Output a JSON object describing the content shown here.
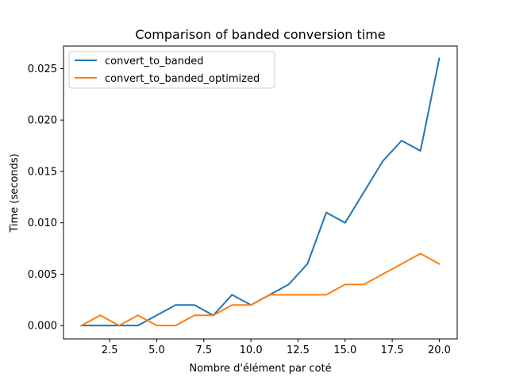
{
  "chart_data": {
    "type": "line",
    "title": "Comparison of banded conversion time",
    "xlabel": "Nombre d'élément par coté",
    "ylabel": "Time (seconds)",
    "xlim": [
      0.05,
      20.95
    ],
    "ylim": [
      -0.0013,
      0.0272
    ],
    "x_ticks": [
      2.5,
      5.0,
      7.5,
      10.0,
      12.5,
      15.0,
      17.5,
      20.0
    ],
    "x_tick_labels": [
      "2.5",
      "5.0",
      "7.5",
      "10.0",
      "12.5",
      "15.0",
      "17.5",
      "20.0"
    ],
    "y_ticks": [
      0.0,
      0.005,
      0.01,
      0.015,
      0.02,
      0.025
    ],
    "y_tick_labels": [
      "0.000",
      "0.005",
      "0.010",
      "0.015",
      "0.020",
      "0.025"
    ],
    "grid": false,
    "legend_position": "upper-left",
    "x": [
      1,
      2,
      3,
      4,
      5,
      6,
      7,
      8,
      9,
      10,
      11,
      12,
      13,
      14,
      15,
      16,
      17,
      18,
      19,
      20
    ],
    "series": [
      {
        "name": "convert_to_banded",
        "color": "#1f77b4",
        "values": [
          0.0,
          0.0,
          0.0,
          0.0,
          0.001,
          0.002,
          0.002,
          0.001,
          0.003,
          0.002,
          0.003,
          0.004,
          0.006,
          0.011,
          0.01,
          0.013,
          0.016,
          0.018,
          0.017,
          0.026
        ]
      },
      {
        "name": "convert_to_banded_optimized",
        "color": "#ff7f0e",
        "values": [
          0.0,
          0.001,
          0.0,
          0.001,
          0.0,
          0.0,
          0.001,
          0.001,
          0.002,
          0.002,
          0.003,
          0.003,
          0.003,
          0.003,
          0.004,
          0.004,
          0.005,
          0.006,
          0.007,
          0.006
        ]
      }
    ]
  }
}
